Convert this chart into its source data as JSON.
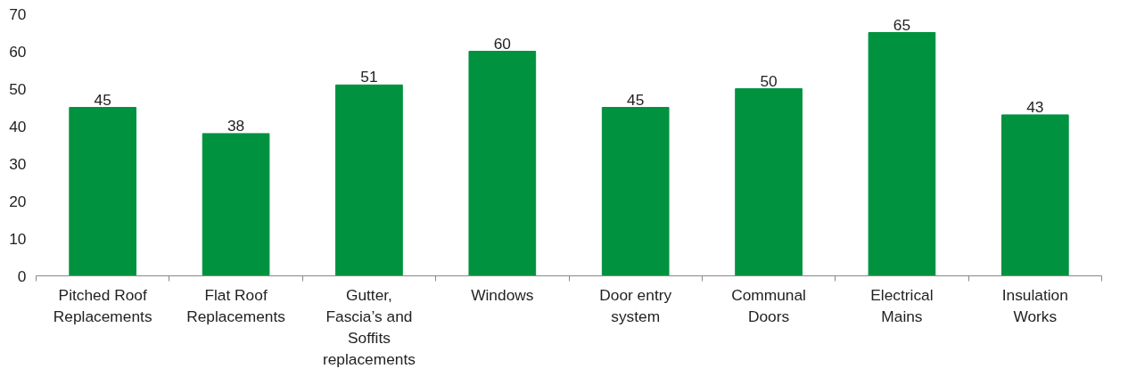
{
  "chart_data": {
    "type": "bar",
    "categories": [
      "Pitched Roof Replacements",
      "Flat Roof Replacements",
      "Gutter, Fascia’s and Soffits replacements",
      "Windows",
      "Door entry system",
      "Communal Doors",
      "Electrical Mains",
      "Insulation Works"
    ],
    "values": [
      45,
      38,
      51,
      60,
      45,
      50,
      65,
      43
    ],
    "color": "#00923f",
    "ylim": [
      0,
      70
    ],
    "yticks": [
      0,
      10,
      20,
      30,
      40,
      50,
      60,
      70
    ],
    "data_labels": true,
    "grid": false
  }
}
